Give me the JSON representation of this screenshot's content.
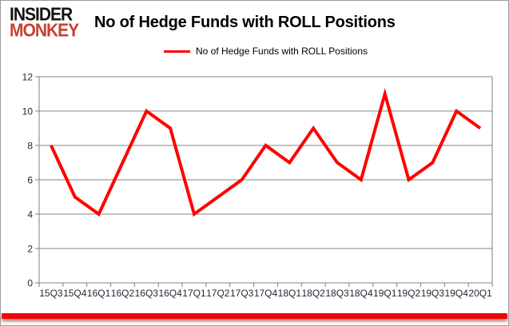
{
  "logo": {
    "line1": "INSIDER",
    "line2": "MONKEY"
  },
  "header": {
    "title": "No of Hedge Funds with ROLL Positions"
  },
  "legend": {
    "label": "No of Hedge Funds with ROLL Positions"
  },
  "colors": {
    "series_line": "#ff0000",
    "gridline": "#848484",
    "axis_line": "#7f7f7f",
    "tick_label": "#1f2633",
    "logo_insider": "#141414",
    "logo_monkey": "#c7402f",
    "frame_bottom_bar": "#f50404"
  },
  "chart_data": {
    "type": "line",
    "title": "No of Hedge Funds with ROLL Positions",
    "legend_entries": [
      "No of Hedge Funds with ROLL Positions"
    ],
    "legend_position": "top",
    "categories": [
      "15Q3",
      "15Q4",
      "16Q1",
      "16Q2",
      "16Q3",
      "16Q4",
      "17Q1",
      "17Q2",
      "17Q3",
      "17Q4",
      "18Q1",
      "18Q2",
      "18Q3",
      "18Q4",
      "19Q1",
      "19Q2",
      "19Q3",
      "19Q4",
      "20Q1"
    ],
    "values": [
      8,
      5,
      4,
      7,
      10,
      9,
      4,
      5,
      6,
      8,
      7,
      9,
      7,
      6,
      11,
      6,
      7,
      10,
      9
    ],
    "xlabel": "",
    "ylabel": "",
    "ylim": [
      0,
      12
    ],
    "yticks": [
      0,
      2,
      4,
      6,
      8,
      10,
      12
    ],
    "grid": true
  }
}
